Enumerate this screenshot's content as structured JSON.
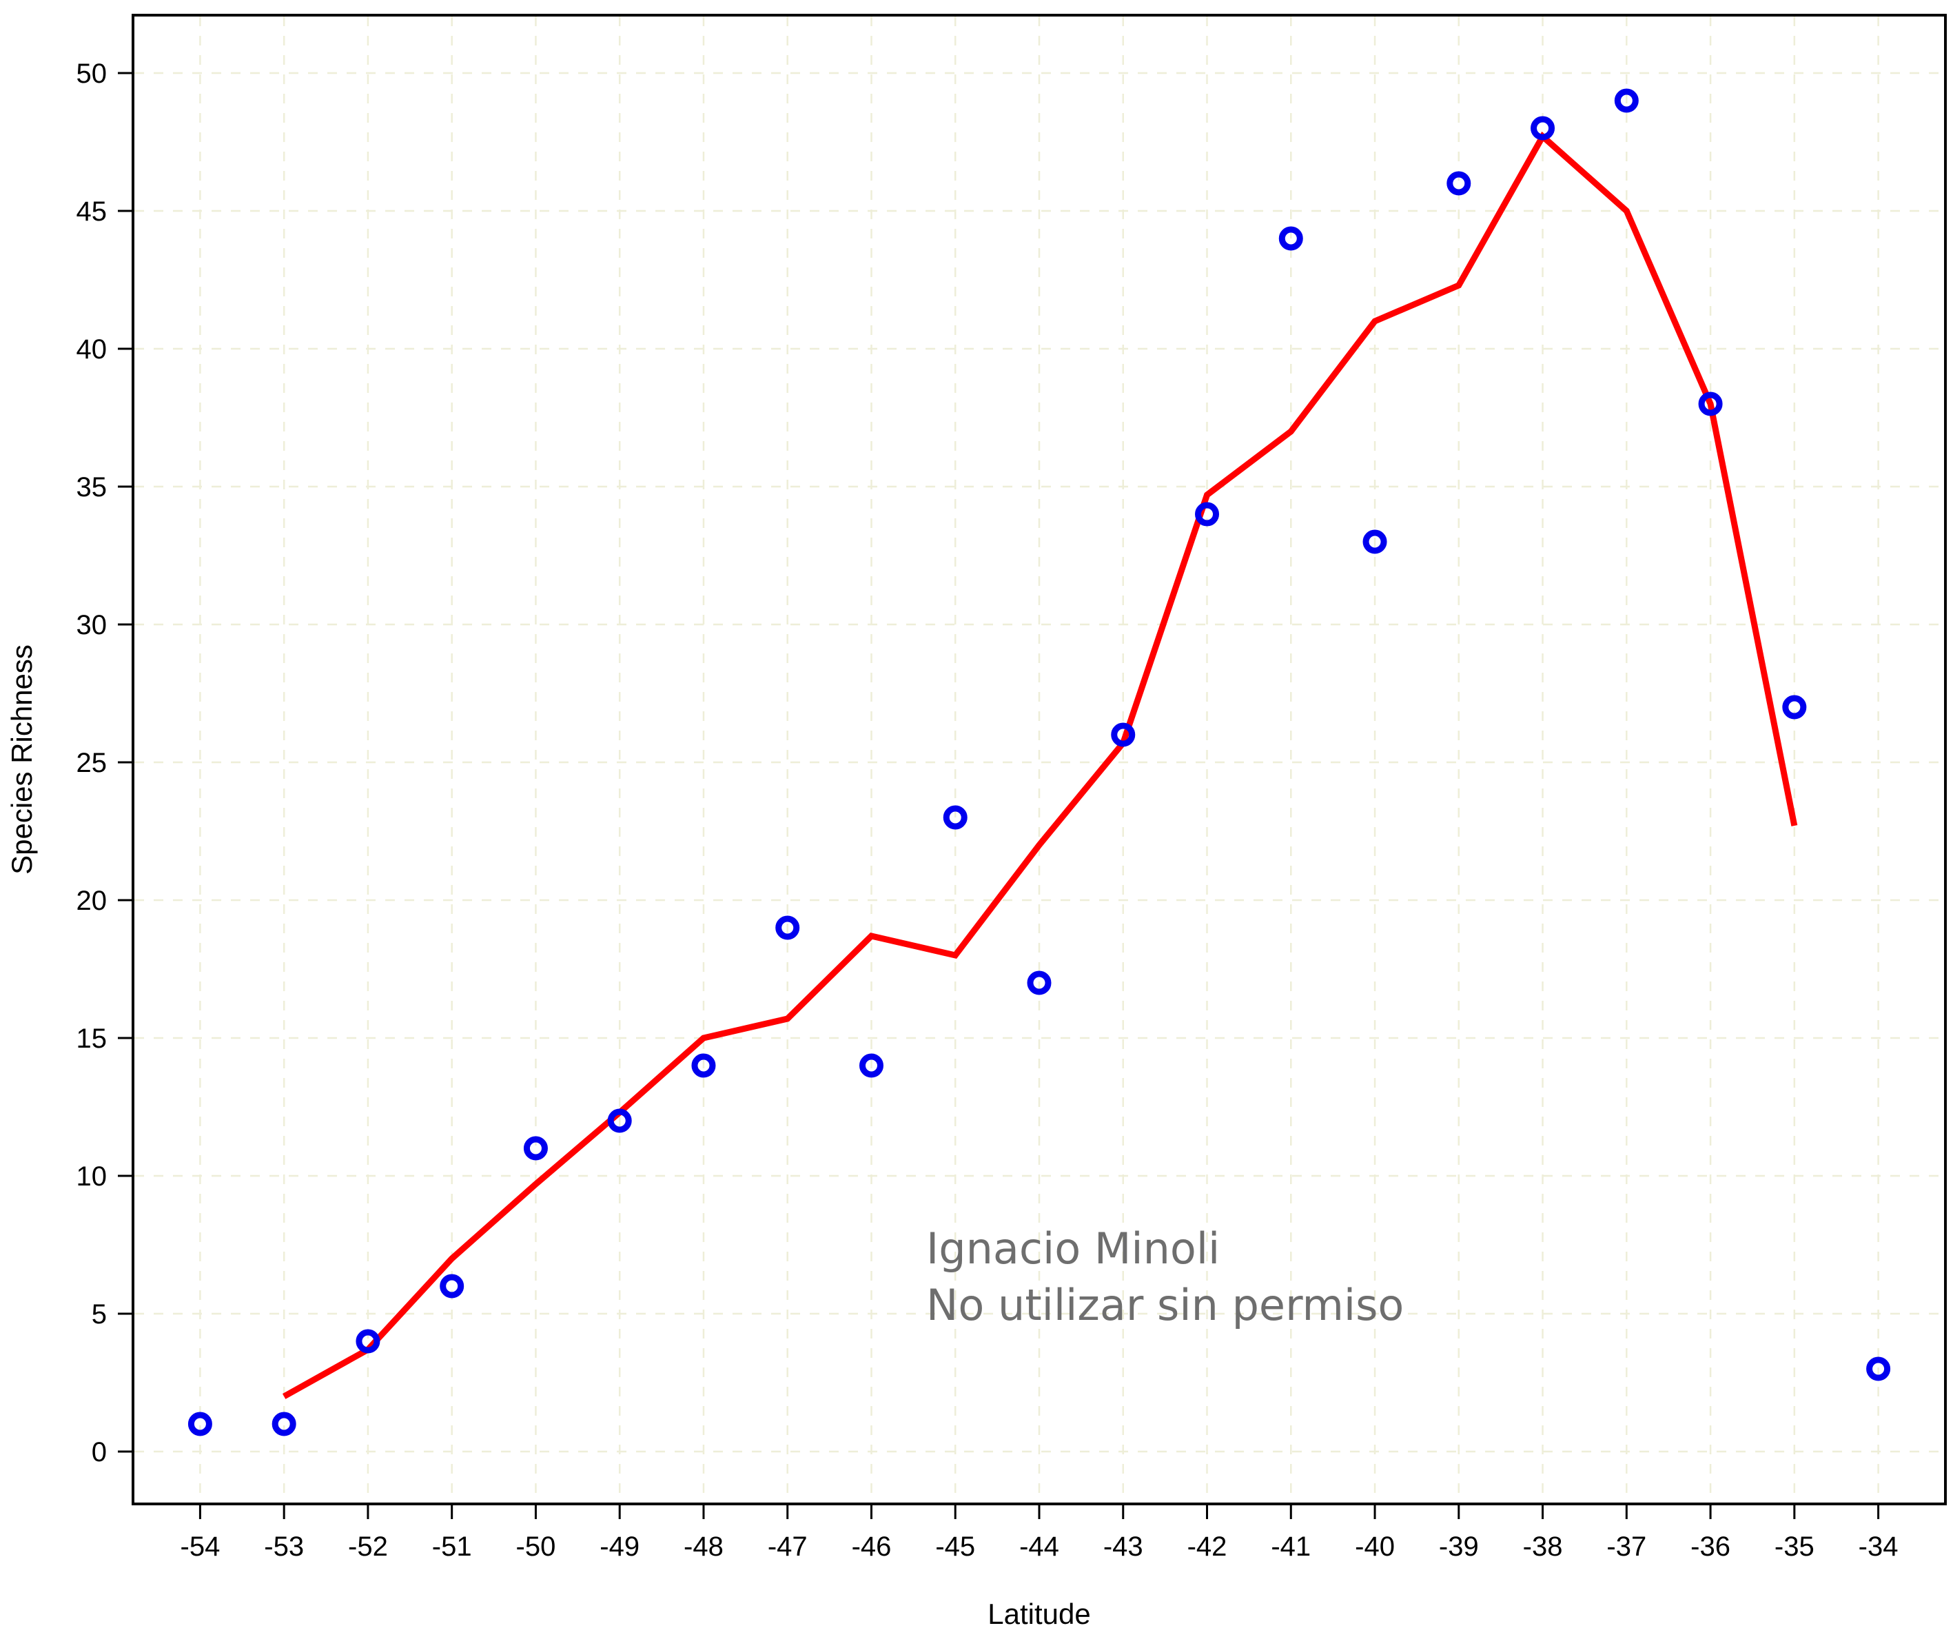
{
  "chart_data": {
    "type": "scatter",
    "xlabel": "Latitude",
    "ylabel": "Species Richness",
    "xlim": [
      -54.8,
      -33.2
    ],
    "ylim": [
      -1.9,
      52.1
    ],
    "x_ticks": [
      -54,
      -53,
      -52,
      -51,
      -50,
      -49,
      -48,
      -47,
      -46,
      -45,
      -44,
      -43,
      -42,
      -41,
      -40,
      -39,
      -38,
      -37,
      -36,
      -35,
      -34
    ],
    "y_ticks": [
      0,
      5,
      10,
      15,
      20,
      25,
      30,
      35,
      40,
      45,
      50
    ],
    "grid": true,
    "grid_color": "#eeeed8",
    "points": {
      "color": "#0000ee",
      "x": [
        -54,
        -53,
        -52,
        -51,
        -50,
        -49,
        -48,
        -47,
        -46,
        -45,
        -44,
        -43,
        -42,
        -41,
        -40,
        -39,
        -38,
        -37,
        -36,
        -35,
        -34
      ],
      "y": [
        1,
        1,
        4,
        6,
        11,
        12,
        14,
        19,
        14,
        23,
        17,
        26,
        34,
        44,
        33,
        46,
        48,
        49,
        38,
        27,
        3
      ]
    },
    "line": {
      "color": "#ff0000",
      "x": [
        -53,
        -52,
        -51,
        -50,
        -49,
        -48,
        -47,
        -46,
        -45,
        -44,
        -43,
        -42,
        -41,
        -40,
        -39,
        -38,
        -37,
        -36,
        -35
      ],
      "y": [
        2,
        3.7,
        7,
        9.7,
        12.3,
        15,
        15.7,
        18.7,
        18,
        22,
        25.7,
        34.7,
        37,
        41,
        42.3,
        47.7,
        45,
        38,
        22.7
      ]
    }
  },
  "watermark": {
    "line1": "Ignacio Minoli",
    "line2": "No utilizar sin permiso"
  }
}
